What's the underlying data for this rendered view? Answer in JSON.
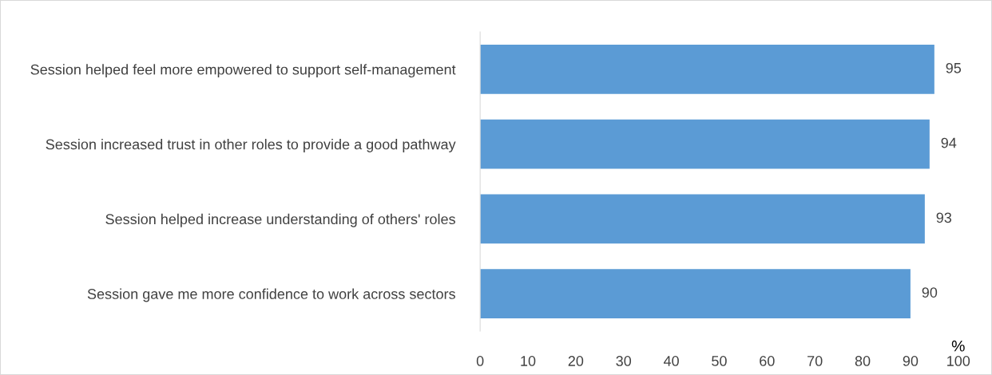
{
  "chart_data": {
    "type": "bar",
    "orientation": "horizontal",
    "xlabel": "%",
    "categories": [
      "Session helped feel more empowered to support self-management",
      "Session increased trust in other roles to provide a good pathway",
      "Session helped increase understanding of others' roles",
      "Session gave me more confidence to work across sectors"
    ],
    "values": [
      95,
      94,
      93,
      90
    ],
    "color": "#5b9bd5",
    "data_labels": true,
    "xlim": [
      0,
      100
    ],
    "xticks": [
      0,
      10,
      20,
      30,
      40,
      50,
      60,
      70,
      80,
      90,
      100
    ],
    "grid": false
  }
}
